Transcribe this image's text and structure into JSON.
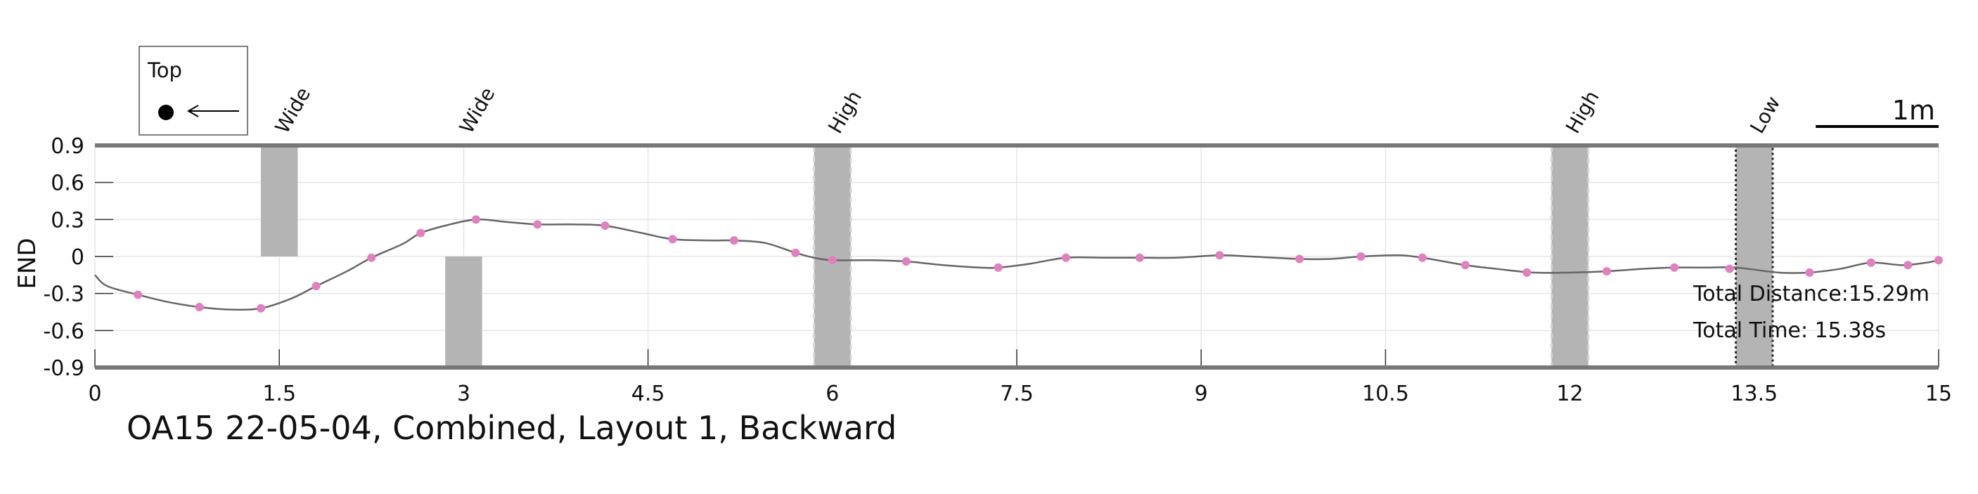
{
  "chart_data": {
    "type": "line",
    "title": "OA15 22-05-04, Combined, Layout 1, Backward",
    "xlabel": "",
    "ylabel": "END",
    "xlim": [
      0,
      15
    ],
    "ylim": [
      -0.9,
      0.9
    ],
    "xticks": [
      "0",
      "1.5",
      "3",
      "4.5",
      "6",
      "7.5",
      "9",
      "10.5",
      "12",
      "13.5",
      "15"
    ],
    "yticks": [
      "0.9",
      "0.6",
      "0.3",
      "0",
      "-0.3",
      "-0.6",
      "-0.9"
    ],
    "grid": true,
    "series": [
      {
        "color": "#666666",
        "marker_color": "#e080c0",
        "x": [
          0,
          0.1,
          0.35,
          0.6,
          0.85,
          1.1,
          1.35,
          1.6,
          1.8,
          2.05,
          2.25,
          2.5,
          2.65,
          2.85,
          3.1,
          3.35,
          3.6,
          3.9,
          4.15,
          4.45,
          4.7,
          5.0,
          5.2,
          5.45,
          5.7,
          5.85,
          6.0,
          6.3,
          6.6,
          6.9,
          7.2,
          7.35,
          7.6,
          7.9,
          8.2,
          8.5,
          8.8,
          9.15,
          9.4,
          9.8,
          10.05,
          10.3,
          10.6,
          10.8,
          11.15,
          11.4,
          11.7,
          12.0,
          12.3,
          12.6,
          12.85,
          13.1,
          13.35,
          13.7,
          13.95,
          14.2,
          14.45,
          14.7,
          14.9,
          15.0
        ],
        "y": [
          -0.15,
          -0.24,
          -0.31,
          -0.37,
          -0.41,
          -0.43,
          -0.42,
          -0.34,
          -0.24,
          -0.12,
          -0.01,
          0.1,
          0.19,
          0.25,
          0.3,
          0.28,
          0.26,
          0.26,
          0.25,
          0.19,
          0.14,
          0.13,
          0.13,
          0.11,
          0.03,
          -0.01,
          -0.03,
          -0.03,
          -0.04,
          -0.07,
          -0.09,
          -0.09,
          -0.06,
          -0.01,
          -0.01,
          -0.01,
          -0.01,
          0.01,
          0.0,
          -0.02,
          -0.02,
          0.0,
          0.01,
          -0.01,
          -0.07,
          -0.1,
          -0.13,
          -0.13,
          -0.12,
          -0.1,
          -0.09,
          -0.09,
          -0.09,
          -0.13,
          -0.13,
          -0.1,
          -0.05,
          -0.07,
          -0.05,
          -0.03
        ]
      }
    ],
    "markers": {
      "x": [
        0.35,
        0.85,
        1.35,
        1.8,
        2.25,
        2.65,
        3.1,
        3.6,
        4.15,
        4.7,
        5.2,
        5.7,
        6.0,
        6.6,
        7.35,
        7.9,
        8.5,
        9.15,
        9.8,
        10.3,
        10.8,
        11.15,
        11.65,
        12.3,
        12.85,
        13.3,
        13.95,
        14.45,
        14.75,
        15.0
      ],
      "y": [
        -0.31,
        -0.41,
        -0.42,
        -0.24,
        -0.01,
        0.19,
        0.3,
        0.26,
        0.25,
        0.14,
        0.13,
        0.03,
        -0.03,
        -0.04,
        -0.09,
        -0.01,
        -0.01,
        0.01,
        -0.02,
        0.0,
        -0.01,
        -0.07,
        -0.13,
        -0.12,
        -0.09,
        -0.1,
        -0.13,
        -0.05,
        -0.07,
        -0.03
      ]
    },
    "regions": [
      {
        "label": "Wide",
        "x0": 1.35,
        "x1": 1.65,
        "y0": 0,
        "y1": 0.9,
        "style": "plain"
      },
      {
        "label": "Wide",
        "x0": 2.85,
        "x1": 3.15,
        "y0": -0.9,
        "y1": 0,
        "style": "plain"
      },
      {
        "label": "High",
        "x0": 5.85,
        "x1": 6.15,
        "y0": -0.9,
        "y1": 0.9,
        "style": "dashed"
      },
      {
        "label": "High",
        "x0": 11.85,
        "x1": 12.15,
        "y0": -0.9,
        "y1": 0.9,
        "style": "dashed"
      },
      {
        "label": "Low",
        "x0": 13.35,
        "x1": 13.65,
        "y0": -0.9,
        "y1": 0.9,
        "style": "dotted"
      }
    ],
    "annotations": [
      {
        "text": "Total Distance:15.29m"
      },
      {
        "text": "Total Time: 15.38s"
      }
    ],
    "legend": {
      "text": "Top",
      "placement": "top-left"
    },
    "scale_bar": {
      "text": "1m",
      "length_x": 1
    }
  },
  "colors": {
    "line": "#666666",
    "marker": "#e080c0",
    "region_fill": "#b4b4b4",
    "frame": "#777777",
    "grid": "#e6e6e6"
  }
}
